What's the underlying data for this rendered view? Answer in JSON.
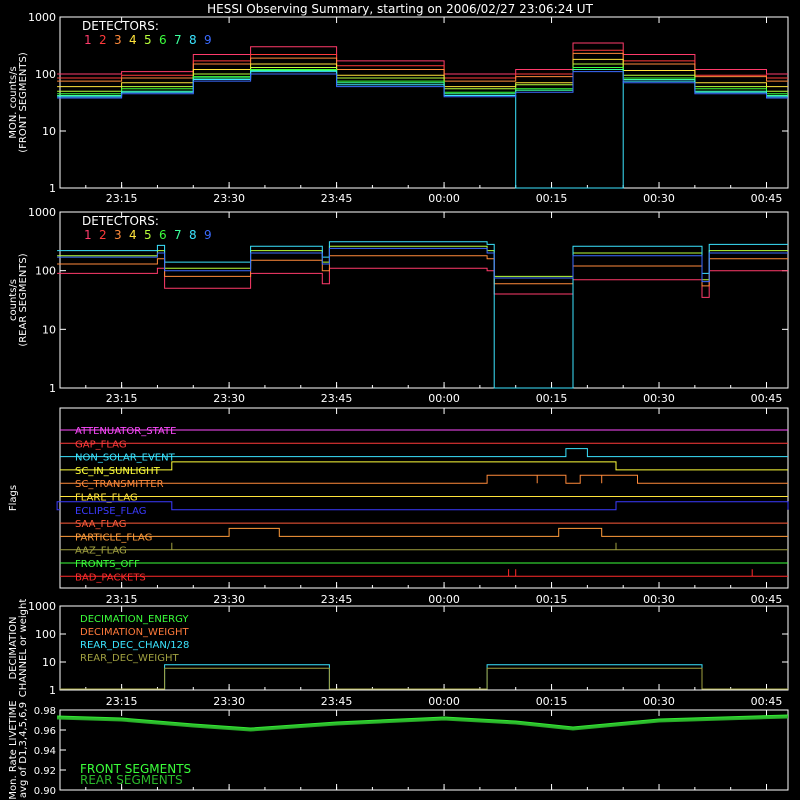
{
  "title": "HESSI Observing Summary, starting on 2006/02/27 23:06:24 UT",
  "time_ticks": [
    "23:15",
    "23:30",
    "23:45",
    "00:00",
    "00:15",
    "00:30",
    "00:45"
  ],
  "colors": {
    "det": [
      "#ff3b6b",
      "#ff3b3b",
      "#ff8a3b",
      "#ffe43b",
      "#b8ff3b",
      "#3bff3b",
      "#3bff9c",
      "#3be4ff",
      "#3b6bff"
    ],
    "attenuator": "#ff4bff",
    "gap": "#ff3b3b",
    "nonsolar": "#3be4ff",
    "sunlight": "#ffff3b",
    "transmitter": "#ff8a3b",
    "flare": "#ffe43b",
    "eclipse": "#3b3bff",
    "saa": "#ff5b3b",
    "particle": "#ff9c3b",
    "aaz": "#a0a040",
    "fronts": "#3bff3b",
    "bad": "#ff2b2b",
    "dec_energy": "#3bff3b",
    "dec_weight": "#ff7a3b",
    "rear_dec_chan": "#3be4ff",
    "rear_dec_weight": "#a0a040",
    "livetime_front": "#3bff3b",
    "livetime_rear": "#2bb82b"
  },
  "chart_data": [
    {
      "type": "line",
      "title": "",
      "ylabel": "MON. counts/s\n(FRONT SEGMENTS)",
      "yscale": "log",
      "ylim": [
        1,
        1000
      ],
      "yticks": [
        "1",
        "10",
        "100",
        "1000"
      ],
      "legend_title": "DETECTORS:",
      "legend": [
        "1",
        "2",
        "3",
        "4",
        "5",
        "6",
        "7",
        "8",
        "9"
      ],
      "x": [
        "23:06",
        "23:15",
        "23:25",
        "23:33",
        "23:45",
        "00:00",
        "00:10",
        "00:18",
        "00:25",
        "00:35",
        "00:45",
        "00:48"
      ],
      "series": [
        {
          "name": "1",
          "values": [
            100,
            110,
            220,
            300,
            170,
            100,
            120,
            350,
            220,
            120,
            100,
            100
          ]
        },
        {
          "name": "2",
          "values": [
            85,
            95,
            170,
            220,
            140,
            85,
            100,
            260,
            170,
            95,
            85,
            85
          ]
        },
        {
          "name": "3",
          "values": [
            75,
            85,
            150,
            190,
            120,
            75,
            90,
            230,
            150,
            90,
            75,
            75
          ]
        },
        {
          "name": "4",
          "values": [
            60,
            70,
            120,
            150,
            95,
            60,
            70,
            180,
            115,
            70,
            60,
            60
          ]
        },
        {
          "name": "5",
          "values": [
            50,
            60,
            100,
            130,
            85,
            55,
            65,
            150,
            95,
            60,
            50,
            50
          ]
        },
        {
          "name": "6",
          "values": [
            45,
            55,
            90,
            120,
            75,
            48,
            55,
            130,
            85,
            55,
            45,
            45
          ]
        },
        {
          "name": "7",
          "values": [
            42,
            50,
            85,
            115,
            70,
            45,
            52,
            120,
            80,
            50,
            42,
            42
          ]
        },
        {
          "name": "8",
          "values": [
            40,
            48,
            80,
            110,
            65,
            42,
            1,
            1,
            75,
            48,
            40,
            40
          ]
        },
        {
          "name": "9",
          "values": [
            38,
            45,
            75,
            100,
            60,
            40,
            48,
            110,
            70,
            45,
            38,
            38
          ]
        }
      ]
    },
    {
      "type": "line",
      "title": "",
      "ylabel": "counts/s\n(REAR SEGMENTS)",
      "yscale": "log",
      "ylim": [
        1,
        1000
      ],
      "yticks": [
        "1",
        "10",
        "100",
        "1000"
      ],
      "legend_title": "DETECTORS:",
      "legend": [
        "1",
        "2",
        "3",
        "4",
        "5",
        "6",
        "7",
        "8",
        "9"
      ],
      "x": [
        "23:06",
        "23:20",
        "23:21",
        "23:33",
        "23:43",
        "23:44",
        "00:06",
        "00:07",
        "00:18",
        "00:36",
        "00:37",
        "00:48"
      ],
      "series": [
        {
          "name": "1",
          "values": [
            90,
            110,
            50,
            90,
            60,
            110,
            100,
            40,
            70,
            35,
            100,
            100
          ]
        },
        {
          "name": "3",
          "values": [
            130,
            160,
            80,
            150,
            100,
            180,
            160,
            60,
            120,
            55,
            160,
            160
          ]
        },
        {
          "name": "5",
          "values": [
            180,
            220,
            110,
            220,
            140,
            260,
            220,
            80,
            200,
            70,
            220,
            220
          ]
        },
        {
          "name": "8",
          "values": [
            220,
            270,
            140,
            260,
            170,
            310,
            280,
            1,
            260,
            90,
            280,
            280
          ]
        },
        {
          "name": "9",
          "values": [
            170,
            200,
            100,
            200,
            130,
            240,
            200,
            75,
            180,
            65,
            200,
            200
          ]
        }
      ]
    },
    {
      "type": "line",
      "title": "",
      "ylabel": "Flags",
      "legend": [
        "ATTENUATOR_STATE",
        "GAP_FLAG",
        "NON_SOLAR_EVENT",
        "SC_IN_SUNLIGHT",
        "SC_TRANSMITTER",
        "FLARE_FLAG",
        "ECLIPSE_FLAG",
        "SAA_FLAG",
        "PARTICLE_FLAG",
        "AAZ_FLAG",
        "FRONTS_OFF",
        "BAD_PACKETS"
      ],
      "series": [
        {
          "name": "ATTENUATOR_STATE",
          "intervals": []
        },
        {
          "name": "GAP_FLAG",
          "intervals": []
        },
        {
          "name": "NON_SOLAR_EVENT",
          "intervals": [
            [
              "00:17",
              "00:20"
            ]
          ]
        },
        {
          "name": "SC_IN_SUNLIGHT",
          "intervals": [
            [
              "23:22",
              "00:24"
            ]
          ]
        },
        {
          "name": "SC_TRANSMITTER",
          "intervals": [
            [
              "00:06",
              "00:13"
            ],
            [
              "00:13",
              "00:17"
            ],
            [
              "00:19",
              "00:22"
            ],
            [
              "00:22",
              "00:27"
            ]
          ]
        },
        {
          "name": "FLARE_FLAG",
          "intervals": []
        },
        {
          "name": "ECLIPSE_FLAG",
          "intervals": [
            [
              "23:06",
              "23:22"
            ],
            [
              "00:24",
              "00:48"
            ]
          ]
        },
        {
          "name": "SAA_FLAG",
          "intervals": []
        },
        {
          "name": "PARTICLE_FLAG",
          "intervals": [
            [
              "23:30",
              "23:37"
            ],
            [
              "00:16",
              "00:22"
            ]
          ]
        },
        {
          "name": "AAZ_FLAG",
          "intervals": [
            [
              "23:22",
              "23:22"
            ],
            [
              "00:24",
              "00:24"
            ]
          ]
        },
        {
          "name": "FRONTS_OFF",
          "intervals": []
        },
        {
          "name": "BAD_PACKETS",
          "intervals": [
            [
              "00:09",
              "00:09"
            ],
            [
              "00:10",
              "00:10"
            ],
            [
              "00:43",
              "00:43"
            ]
          ]
        }
      ]
    },
    {
      "type": "line",
      "title": "",
      "ylabel": "DECIMATION\nCHANNEL or weight",
      "yscale": "log",
      "ylim": [
        1,
        1000
      ],
      "yticks": [
        "1",
        "10",
        "100",
        "1000"
      ],
      "legend": [
        "DECIMATION_ENERGY",
        "DECIMATION_WEIGHT",
        "REAR_DEC_CHAN/128",
        "REAR_DEC_WEIGHT"
      ],
      "series": [
        {
          "name": "DECIMATION_ENERGY",
          "values": []
        },
        {
          "name": "DECIMATION_WEIGHT",
          "values": []
        },
        {
          "name": "REAR_DEC_CHAN/128",
          "intervals": [
            [
              "23:21",
              "23:44",
              8
            ],
            [
              "00:06",
              "00:36",
              8
            ]
          ],
          "baseline": 1
        },
        {
          "name": "REAR_DEC_WEIGHT",
          "intervals": [
            [
              "23:21",
              "23:44",
              6
            ],
            [
              "00:06",
              "00:36",
              6
            ]
          ],
          "baseline": 1
        }
      ]
    },
    {
      "type": "line",
      "title": "",
      "ylabel": "Mon. Rate LIVETIME\navg of D1,3,4,5,6,9",
      "ylim": [
        0.9,
        0.98
      ],
      "yticks": [
        "0.90",
        "0.92",
        "0.94",
        "0.96",
        "0.98"
      ],
      "legend": [
        "FRONT SEGMENTS",
        "REAR SEGMENTS"
      ],
      "x": [
        "23:06",
        "23:15",
        "23:25",
        "23:33",
        "23:45",
        "00:00",
        "00:10",
        "00:18",
        "00:30",
        "00:48"
      ],
      "series": [
        {
          "name": "FRONT SEGMENTS",
          "values": [
            0.973,
            0.971,
            0.965,
            0.961,
            0.967,
            0.972,
            0.968,
            0.962,
            0.97,
            0.974
          ]
        },
        {
          "name": "REAR SEGMENTS",
          "values": [
            0.972,
            0.97,
            0.964,
            0.96,
            0.966,
            0.971,
            0.967,
            0.961,
            0.969,
            0.973
          ]
        }
      ]
    }
  ]
}
